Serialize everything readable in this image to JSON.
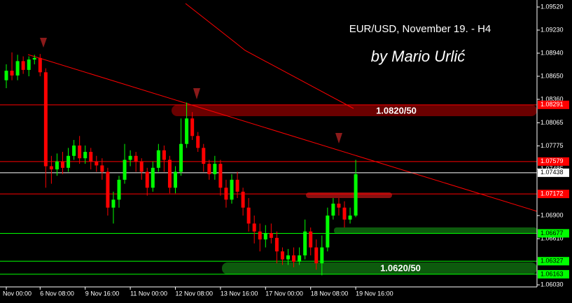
{
  "chart_data": {
    "type": "candlestick",
    "title": "EUR/USD, November 19. - H4",
    "subtitle": "by Mario Urlić",
    "annotations": [
      "1.0820/50",
      "1.0620/50"
    ],
    "up_color": "#00ff00",
    "down_color": "#ff0000",
    "categories": [
      "Nov 00:00",
      null,
      null,
      null,
      null,
      null,
      "6 Nov 08:00",
      null,
      null,
      null,
      null,
      null,
      null,
      null,
      "9 Nov 16:00",
      null,
      null,
      null,
      null,
      null,
      null,
      null,
      "11 Nov 00:00",
      null,
      null,
      null,
      null,
      null,
      null,
      null,
      "12 Nov 08:00",
      null,
      null,
      null,
      null,
      null,
      null,
      null,
      "13 Nov 16:00",
      null,
      null,
      null,
      null,
      null,
      null,
      null,
      "17 Nov 00:00",
      null,
      null,
      null,
      null,
      null,
      null,
      null,
      "18 Nov 08:00",
      null,
      null,
      null,
      null,
      null,
      null,
      null,
      "19 Nov 16:00"
    ],
    "open": [
      1.086,
      1.0872,
      1.0866,
      1.0884,
      1.0873,
      1.0886,
      1.0888,
      1.087,
      1.0752,
      1.0748,
      1.0758,
      1.075,
      1.0765,
      1.0778,
      1.0762,
      1.077,
      1.0758,
      1.0753,
      1.0745,
      1.07,
      1.071,
      1.0735,
      1.076,
      1.0765,
      1.0758,
      1.0745,
      1.0725,
      1.075,
      1.0772,
      1.076,
      1.0725,
      1.0745,
      1.078,
      1.0812,
      1.079,
      1.0775,
      1.0755,
      1.0742,
      1.0755,
      1.0725,
      1.071,
      1.0735,
      1.072,
      1.07,
      1.068,
      1.067,
      1.066,
      1.0668,
      1.0662,
      1.0645,
      1.0635,
      1.064,
      1.0632,
      1.064,
      1.067,
      1.065,
      1.063,
      1.065,
      1.069,
      1.0705,
      1.07,
      1.0685,
      1.069
    ],
    "high": [
      1.088,
      1.0895,
      1.0892,
      1.089,
      1.089,
      1.0892,
      1.0893,
      1.0875,
      1.0765,
      1.0768,
      1.077,
      1.0775,
      1.0785,
      1.079,
      1.0778,
      1.0775,
      1.0765,
      1.0762,
      1.075,
      1.072,
      1.074,
      1.078,
      1.0772,
      1.077,
      1.0762,
      1.075,
      1.0758,
      1.078,
      1.0778,
      1.0765,
      1.0752,
      1.0812,
      1.0832,
      1.082,
      1.0795,
      1.078,
      1.076,
      1.0765,
      1.076,
      1.0735,
      1.0742,
      1.0745,
      1.0725,
      1.0712,
      1.069,
      1.068,
      1.0678,
      1.068,
      1.067,
      1.065,
      1.0648,
      1.065,
      1.065,
      1.0685,
      1.0675,
      1.066,
      1.0665,
      1.07,
      1.0712,
      1.0712,
      1.0708,
      1.07,
      1.076
    ],
    "low": [
      1.085,
      1.086,
      1.086,
      1.0868,
      1.0865,
      1.088,
      1.0865,
      1.0725,
      1.073,
      1.074,
      1.0742,
      1.0745,
      1.076,
      1.0755,
      1.0755,
      1.0748,
      1.0745,
      1.0735,
      1.069,
      1.068,
      1.07,
      1.073,
      1.0752,
      1.0745,
      1.0735,
      1.0715,
      1.072,
      1.0745,
      1.0745,
      1.0718,
      1.0718,
      1.074,
      1.0775,
      1.0785,
      1.077,
      1.0745,
      1.0735,
      1.0735,
      1.0715,
      1.07,
      1.0705,
      1.0712,
      1.069,
      1.067,
      1.0655,
      1.0645,
      1.065,
      1.0655,
      1.063,
      1.0628,
      1.0628,
      1.0625,
      1.0628,
      1.0635,
      1.064,
      1.0622,
      1.0615,
      1.0645,
      1.0685,
      1.069,
      1.0675,
      1.068,
      1.0688
    ],
    "close": [
      1.0872,
      1.0866,
      1.0884,
      1.0873,
      1.0886,
      1.0888,
      1.087,
      1.0752,
      1.0748,
      1.0758,
      1.075,
      1.0765,
      1.0778,
      1.0762,
      1.077,
      1.0758,
      1.0753,
      1.0745,
      1.07,
      1.071,
      1.0735,
      1.076,
      1.0765,
      1.0758,
      1.0745,
      1.0725,
      1.075,
      1.0772,
      1.076,
      1.0725,
      1.0745,
      1.078,
      1.0812,
      1.079,
      1.0775,
      1.0755,
      1.0742,
      1.0755,
      1.0725,
      1.071,
      1.0735,
      1.072,
      1.07,
      1.068,
      1.067,
      1.066,
      1.0668,
      1.0662,
      1.0645,
      1.0635,
      1.064,
      1.0632,
      1.064,
      1.067,
      1.065,
      1.063,
      1.065,
      1.069,
      1.0705,
      1.07,
      1.0685,
      1.069,
      1.0742
    ],
    "ylim": [
      1.06004,
      1.09608
    ],
    "yticks": [
      {
        "value": 1.0952,
        "label": "1.09520"
      },
      {
        "value": 1.0923,
        "label": "1.09230"
      },
      {
        "value": 1.0894,
        "label": "1.08940"
      },
      {
        "value": 1.0865,
        "label": "1.08650"
      },
      {
        "value": 1.0836,
        "label": "1.08360"
      },
      1.08065,
      1.07775,
      1.07485,
      {
        "value": 1.069,
        "label": "1.06900"
      },
      {
        "value": 1.0661,
        "label": "1.06610"
      },
      {
        "value": 1.0603,
        "label": "1.06030"
      }
    ],
    "levels": [
      {
        "value": 1.08291,
        "color": "#ff0000"
      },
      {
        "value": 1.07579,
        "color": "#ff0000"
      },
      {
        "value": 1.07438,
        "color": "#ffffff"
      },
      {
        "value": 1.07172,
        "color": "#ff0000"
      },
      {
        "value": 1.06677,
        "color": "#00ff00"
      },
      {
        "value": 1.06327,
        "color": "#00ff00"
      },
      {
        "value": 1.06163,
        "color": "#00ff00"
      }
    ]
  }
}
